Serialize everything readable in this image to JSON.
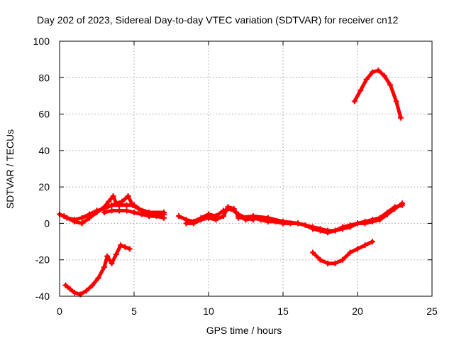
{
  "chart_data": {
    "type": "scatter",
    "title": "Day 202 of 2023, Sidereal Day-to-day VTEC variation (SDTVAR) for receiver cn12",
    "xlabel": "GPS time / hours",
    "ylabel": "SDTVAR / TECUs",
    "xlim": [
      0,
      25
    ],
    "ylim": [
      -40,
      100
    ],
    "x_ticks": [
      0,
      5,
      10,
      15,
      20,
      25
    ],
    "y_ticks": [
      -40,
      -20,
      0,
      20,
      40,
      60,
      80,
      100
    ],
    "grid": true,
    "legend": "none",
    "color": "#ff0000",
    "series": [
      {
        "name": "arc-main-1",
        "points": [
          [
            0,
            5
          ],
          [
            0.5,
            3
          ],
          [
            1,
            2
          ],
          [
            1.5,
            3
          ],
          [
            2,
            5
          ],
          [
            2.5,
            7
          ],
          [
            3,
            8
          ],
          [
            3.5,
            10
          ],
          [
            4,
            10
          ],
          [
            4.5,
            10
          ],
          [
            5,
            10
          ],
          [
            5.5,
            7
          ],
          [
            6,
            5
          ],
          [
            6.5,
            5
          ],
          [
            7,
            5
          ]
        ]
      },
      {
        "name": "arc-main-2",
        "points": [
          [
            0.3,
            4
          ],
          [
            1,
            1
          ],
          [
            1.5,
            0
          ],
          [
            2,
            3
          ],
          [
            2.5,
            6
          ],
          [
            3,
            9
          ],
          [
            3.3,
            12
          ],
          [
            3.6,
            15
          ],
          [
            3.8,
            11
          ],
          [
            4.2,
            12
          ],
          [
            4.6,
            15
          ],
          [
            4.9,
            10
          ],
          [
            5.3,
            8
          ],
          [
            6,
            6
          ],
          [
            7,
            6
          ]
        ]
      },
      {
        "name": "arc-main-3",
        "points": [
          [
            3,
            6
          ],
          [
            3.5,
            7
          ],
          [
            4,
            7
          ],
          [
            4.5,
            7
          ],
          [
            5,
            6
          ],
          [
            5.5,
            5
          ],
          [
            6,
            4
          ],
          [
            6.5,
            4
          ],
          [
            7,
            3
          ]
        ]
      },
      {
        "name": "arc-mid-1",
        "points": [
          [
            8,
            4
          ],
          [
            8.5,
            2
          ],
          [
            9,
            1
          ],
          [
            9.5,
            3
          ],
          [
            10,
            5
          ],
          [
            10.5,
            4
          ],
          [
            11,
            7
          ],
          [
            11.5,
            8
          ],
          [
            12,
            5
          ],
          [
            12.5,
            3
          ],
          [
            13,
            2
          ]
        ]
      },
      {
        "name": "arc-mid-2",
        "points": [
          [
            8.5,
            0
          ],
          [
            9,
            0
          ],
          [
            9.5,
            2
          ],
          [
            10,
            3
          ],
          [
            10.5,
            2
          ],
          [
            11,
            4
          ],
          [
            11.3,
            9
          ],
          [
            11.7,
            8
          ],
          [
            12,
            4
          ],
          [
            12.5,
            2
          ],
          [
            13,
            3
          ],
          [
            13.5,
            2
          ],
          [
            14,
            1
          ],
          [
            14.5,
            1
          ],
          [
            15,
            0
          ],
          [
            15.5,
            0
          ],
          [
            16,
            0
          ]
        ]
      },
      {
        "name": "arc-mid-3",
        "points": [
          [
            12,
            3
          ],
          [
            13,
            4
          ],
          [
            14,
            3
          ],
          [
            15,
            1
          ],
          [
            16,
            0
          ],
          [
            16.5,
            -1
          ],
          [
            17,
            -2
          ],
          [
            17.5,
            -3
          ],
          [
            18,
            -4
          ],
          [
            18.5,
            -4
          ],
          [
            19,
            -3
          ],
          [
            19.5,
            -2
          ],
          [
            20,
            0
          ],
          [
            20.5,
            0
          ],
          [
            21,
            1
          ],
          [
            21.5,
            2
          ],
          [
            22,
            5
          ],
          [
            22.5,
            8
          ],
          [
            23,
            11
          ]
        ]
      },
      {
        "name": "arc-mid-4",
        "points": [
          [
            15,
            1
          ],
          [
            15.5,
            0
          ],
          [
            16,
            0
          ],
          [
            16.5,
            -1
          ],
          [
            17,
            -3
          ],
          [
            17.5,
            -4
          ],
          [
            18,
            -5
          ],
          [
            18.5,
            -4
          ],
          [
            19,
            -2
          ],
          [
            19.5,
            -1
          ],
          [
            20,
            0
          ],
          [
            20.5,
            1
          ],
          [
            21,
            2
          ],
          [
            21.5,
            3
          ],
          [
            22,
            6
          ],
          [
            22.5,
            9
          ],
          [
            23,
            10
          ]
        ]
      },
      {
        "name": "arc-low-left",
        "points": [
          [
            0.4,
            -34
          ],
          [
            0.7,
            -36
          ],
          [
            1,
            -38
          ],
          [
            1.4,
            -39
          ],
          [
            1.8,
            -37
          ],
          [
            2.2,
            -34
          ],
          [
            2.6,
            -30
          ],
          [
            3,
            -24
          ],
          [
            3.2,
            -18
          ],
          [
            3.5,
            -22
          ],
          [
            3.8,
            -17
          ],
          [
            4.1,
            -12
          ],
          [
            4.4,
            -13
          ],
          [
            4.7,
            -14
          ]
        ]
      },
      {
        "name": "arc-low-right",
        "points": [
          [
            17,
            -16
          ],
          [
            17.5,
            -20
          ],
          [
            18,
            -22
          ],
          [
            18.5,
            -22
          ],
          [
            19,
            -20
          ],
          [
            19.5,
            -16
          ],
          [
            20,
            -14
          ],
          [
            20.5,
            -12
          ],
          [
            21,
            -10
          ]
        ]
      },
      {
        "name": "arc-high",
        "points": [
          [
            19.8,
            67
          ],
          [
            20.2,
            73
          ],
          [
            20.6,
            79
          ],
          [
            21,
            83
          ],
          [
            21.4,
            84
          ],
          [
            21.8,
            81
          ],
          [
            22.2,
            76
          ],
          [
            22.6,
            67
          ],
          [
            22.9,
            58
          ]
        ]
      }
    ]
  }
}
